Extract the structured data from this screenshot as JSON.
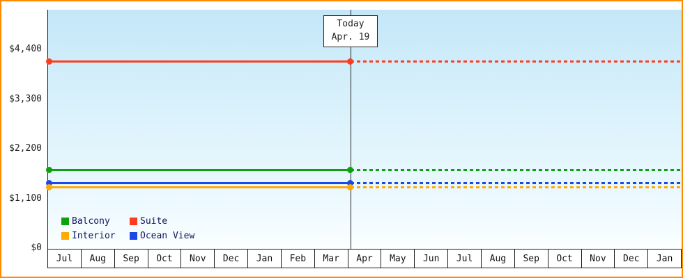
{
  "window": {
    "frame_border_color": "#ff8a00"
  },
  "chart_data": {
    "type": "line",
    "title": "",
    "xlabel": "",
    "ylabel": "",
    "grid": false,
    "legend_position": "bottom-left",
    "x_categories": [
      "Jul",
      "Aug",
      "Sep",
      "Oct",
      "Nov",
      "Dec",
      "Jan",
      "Feb",
      "Mar",
      "Apr",
      "May",
      "Jun",
      "Jul",
      "Aug",
      "Sep",
      "Oct",
      "Nov",
      "Dec",
      "Jan"
    ],
    "y_ticks": [
      {
        "value": 0,
        "label": "$0"
      },
      {
        "value": 1100,
        "label": "$1,100"
      },
      {
        "value": 2200,
        "label": "$2,200"
      },
      {
        "value": 3300,
        "label": "$3,300"
      },
      {
        "value": 4400,
        "label": "$4,400"
      }
    ],
    "ylim": [
      0,
      5300
    ],
    "today_marker": {
      "label": "Today",
      "date": "Apr. 19",
      "x_index": 9.08
    },
    "series": [
      {
        "name": "Suite",
        "color": "#ff3c1e",
        "value": 4150,
        "style": "solid-then-dashed"
      },
      {
        "name": "Balcony",
        "color": "#0da10d",
        "value": 1750,
        "style": "solid-then-dashed"
      },
      {
        "name": "Ocean View",
        "color": "#1b49e6",
        "value": 1460,
        "style": "solid-then-dashed"
      },
      {
        "name": "Interior",
        "color": "#ffaa00",
        "value": 1360,
        "style": "solid-then-dashed"
      }
    ],
    "legend": [
      {
        "label": "Balcony",
        "color": "#0da10d"
      },
      {
        "label": "Suite",
        "color": "#ff3c1e"
      },
      {
        "label": "Interior",
        "color": "#ffaa00"
      },
      {
        "label": "Ocean View",
        "color": "#1b49e6"
      }
    ]
  }
}
